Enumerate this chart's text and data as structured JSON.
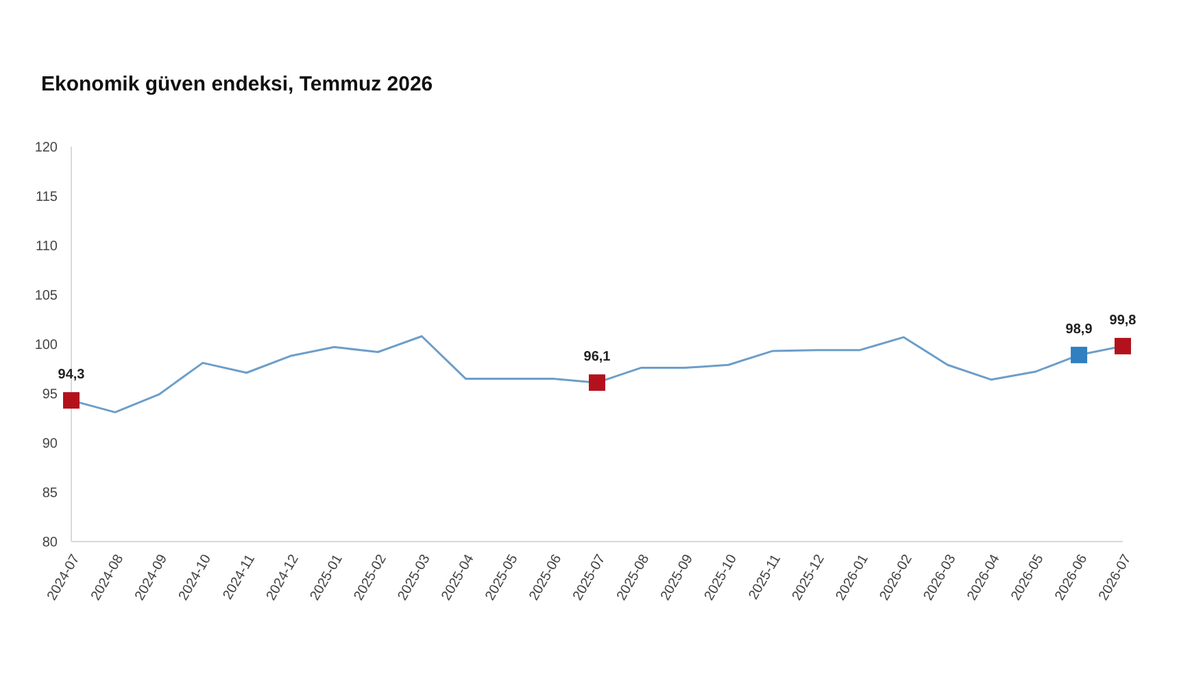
{
  "chart_data": {
    "type": "line",
    "title": "Ekonomik güven endeksi, Temmuz 2026",
    "categories": [
      "2024-07",
      "2024-08",
      "2024-09",
      "2024-10",
      "2024-11",
      "2024-12",
      "2025-01",
      "2025-02",
      "2025-03",
      "2025-04",
      "2025-05",
      "2025-06",
      "2025-07",
      "2025-08",
      "2025-09",
      "2025-10",
      "2025-11",
      "2025-12",
      "2026-01",
      "2026-02",
      "2026-03",
      "2026-04",
      "2026-05",
      "2026-06",
      "2026-07"
    ],
    "ylim": [
      80,
      120
    ],
    "yticks": [
      80,
      85,
      90,
      95,
      100,
      105,
      110,
      115,
      120
    ],
    "grid": false,
    "series": [
      {
        "color": "#6c9ec9",
        "marker": "none",
        "line_style": "solid",
        "values": [
          94.3,
          93.1,
          94.9,
          98.1,
          97.1,
          98.8,
          99.7,
          99.2,
          100.8,
          96.5,
          96.5,
          96.5,
          96.1,
          97.6,
          97.6,
          97.9,
          99.3,
          99.4,
          99.4,
          100.7,
          97.9,
          96.4,
          97.2,
          98.9,
          99.8
        ]
      },
      {
        "type": "scatter",
        "color": "#b3121c",
        "marker": "square",
        "values": [
          94.3,
          null,
          null,
          null,
          null,
          null,
          null,
          null,
          null,
          null,
          null,
          null,
          96.1,
          null,
          null,
          null,
          null,
          null,
          null,
          null,
          null,
          null,
          null,
          null,
          99.8
        ],
        "value_labels": [
          "94,3",
          null,
          null,
          null,
          null,
          null,
          null,
          null,
          null,
          null,
          null,
          null,
          "96,1",
          null,
          null,
          null,
          null,
          null,
          null,
          null,
          null,
          null,
          null,
          null,
          "99,8"
        ]
      },
      {
        "type": "scatter",
        "color": "#2f7fc1",
        "marker": "square",
        "values": [
          null,
          null,
          null,
          null,
          null,
          null,
          null,
          null,
          null,
          null,
          null,
          null,
          null,
          null,
          null,
          null,
          null,
          null,
          null,
          null,
          null,
          null,
          null,
          98.9,
          null
        ],
        "value_labels": [
          null,
          null,
          null,
          null,
          null,
          null,
          null,
          null,
          null,
          null,
          null,
          null,
          null,
          null,
          null,
          null,
          null,
          null,
          null,
          null,
          null,
          null,
          null,
          "98,9",
          null
        ]
      }
    ]
  }
}
